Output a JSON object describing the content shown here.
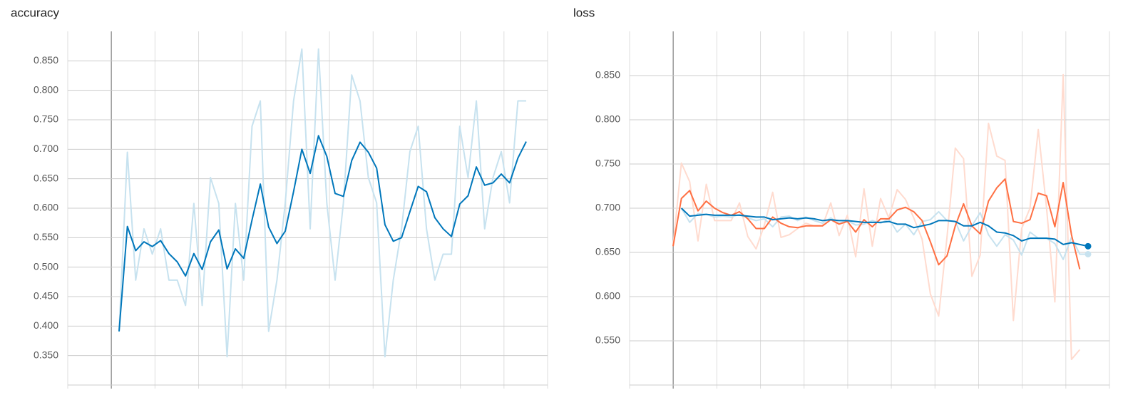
{
  "chart_data": [
    {
      "type": "line",
      "title": "accuracy",
      "grid": true,
      "ylim": [
        0.3,
        0.9
      ],
      "yticks": [
        {
          "value": 0.35,
          "label": "0.350"
        },
        {
          "value": 0.4,
          "label": "0.400"
        },
        {
          "value": 0.45,
          "label": "0.450"
        },
        {
          "value": 0.5,
          "label": "0.500"
        },
        {
          "value": 0.55,
          "label": "0.550"
        },
        {
          "value": 0.6,
          "label": "0.600"
        },
        {
          "value": 0.65,
          "label": "0.650"
        },
        {
          "value": 0.7,
          "label": "0.700"
        },
        {
          "value": 0.75,
          "label": "0.750"
        },
        {
          "value": 0.8,
          "label": "0.800"
        },
        {
          "value": 0.85,
          "label": "0.850"
        }
      ],
      "series": [
        {
          "color": "#c7e2ef",
          "values": [
            0.391,
            0.695,
            0.478,
            0.565,
            0.522,
            0.565,
            0.478,
            0.478,
            0.435,
            0.608,
            0.435,
            0.652,
            0.608,
            0.348,
            0.608,
            0.478,
            0.739,
            0.782,
            0.391,
            0.478,
            0.609,
            0.782,
            0.87,
            0.565,
            0.87,
            0.609,
            0.478,
            0.609,
            0.826,
            0.782,
            0.652,
            0.609,
            0.348,
            0.478,
            0.565,
            0.696,
            0.739,
            0.565,
            0.478,
            0.522,
            0.522,
            0.739,
            0.652,
            0.782,
            0.565,
            0.652,
            0.696,
            0.609,
            0.782,
            0.782
          ]
        },
        {
          "color": "#0077bb",
          "values": [
            0.391,
            0.569,
            0.528,
            0.543,
            0.535,
            0.545,
            0.523,
            0.509,
            0.485,
            0.523,
            0.496,
            0.543,
            0.563,
            0.497,
            0.531,
            0.515,
            0.58,
            0.641,
            0.568,
            0.54,
            0.561,
            0.628,
            0.7,
            0.659,
            0.723,
            0.688,
            0.625,
            0.62,
            0.681,
            0.712,
            0.695,
            0.668,
            0.572,
            0.544,
            0.55,
            0.594,
            0.637,
            0.628,
            0.584,
            0.565,
            0.552,
            0.607,
            0.621,
            0.67,
            0.639,
            0.643,
            0.658,
            0.643,
            0.685,
            0.713
          ]
        }
      ]
    },
    {
      "type": "line",
      "title": "loss",
      "grid": true,
      "ylim": [
        0.5,
        0.9
      ],
      "yticks": [
        {
          "value": 0.55,
          "label": "0.550"
        },
        {
          "value": 0.6,
          "label": "0.600"
        },
        {
          "value": 0.65,
          "label": "0.650"
        },
        {
          "value": 0.7,
          "label": "0.700"
        },
        {
          "value": 0.75,
          "label": "0.750"
        },
        {
          "value": 0.8,
          "label": "0.800"
        },
        {
          "value": 0.85,
          "label": "0.850"
        }
      ],
      "series": [
        {
          "color": "#ffdbcf",
          "values": [
            0.657,
            0.751,
            0.73,
            0.663,
            0.727,
            0.686,
            0.686,
            0.686,
            0.706,
            0.668,
            0.654,
            0.681,
            0.718,
            0.667,
            0.67,
            0.677,
            0.683,
            0.68,
            0.68,
            0.706,
            0.669,
            0.692,
            0.645,
            0.722,
            0.657,
            0.711,
            0.689,
            0.721,
            0.71,
            0.689,
            0.665,
            0.603,
            0.578,
            0.667,
            0.768,
            0.756,
            0.623,
            0.647,
            0.796,
            0.759,
            0.754,
            0.573,
            0.677,
            0.7,
            0.789,
            0.7,
            0.594,
            0.851,
            0.529,
            0.54,
            null
          ]
        },
        {
          "color": "#c7e2ef",
          "values": [
            null,
            0.7,
            0.684,
            0.694,
            0.693,
            0.69,
            0.691,
            0.69,
            0.693,
            0.689,
            0.686,
            0.688,
            0.679,
            0.69,
            0.691,
            0.686,
            0.69,
            0.686,
            0.683,
            0.689,
            0.683,
            0.686,
            0.681,
            0.682,
            0.686,
            0.683,
            0.688,
            0.673,
            0.682,
            0.67,
            0.685,
            0.687,
            0.696,
            0.686,
            0.685,
            0.663,
            0.68,
            0.695,
            0.67,
            0.657,
            0.67,
            0.664,
            0.647,
            0.673,
            0.666,
            0.666,
            0.66,
            0.642,
            0.667,
            0.648,
            0.648
          ]
        },
        {
          "color": "#ff7043",
          "values": [
            0.657,
            0.711,
            0.72,
            0.697,
            0.708,
            0.7,
            0.695,
            0.692,
            0.696,
            0.688,
            0.677,
            0.677,
            0.69,
            0.683,
            0.679,
            0.678,
            0.68,
            0.68,
            0.68,
            0.687,
            0.682,
            0.685,
            0.673,
            0.687,
            0.679,
            0.688,
            0.688,
            0.698,
            0.701,
            0.696,
            0.686,
            0.662,
            0.636,
            0.646,
            0.68,
            0.705,
            0.68,
            0.671,
            0.708,
            0.723,
            0.733,
            0.685,
            0.683,
            0.687,
            0.717,
            0.714,
            0.679,
            0.729,
            0.67,
            0.631,
            null
          ]
        },
        {
          "color": "#0077bb",
          "values": [
            null,
            0.7,
            0.691,
            0.692,
            0.693,
            0.692,
            0.692,
            0.692,
            0.692,
            0.691,
            0.69,
            0.69,
            0.687,
            0.688,
            0.689,
            0.688,
            0.689,
            0.688,
            0.686,
            0.687,
            0.686,
            0.686,
            0.685,
            0.684,
            0.684,
            0.684,
            0.685,
            0.682,
            0.682,
            0.678,
            0.68,
            0.682,
            0.686,
            0.686,
            0.685,
            0.68,
            0.68,
            0.684,
            0.68,
            0.673,
            0.672,
            0.669,
            0.663,
            0.666,
            0.666,
            0.666,
            0.665,
            0.659,
            0.661,
            0.659,
            0.657
          ]
        }
      ]
    }
  ]
}
